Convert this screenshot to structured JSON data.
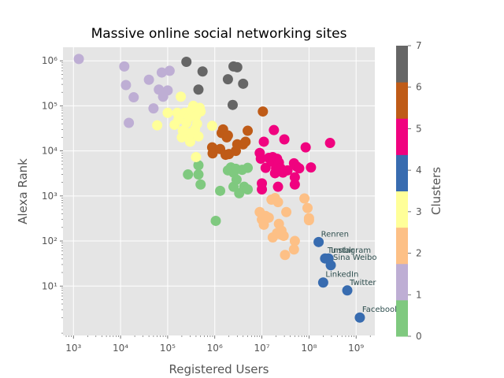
{
  "chart_data": {
    "type": "scatter",
    "title": "Massive online social networking sites",
    "xlabel": "Registered Users",
    "ylabel": "Alexa Rank",
    "xscale": "log",
    "yscale": "log",
    "xlim": [
      600,
      2500000000
    ],
    "ylim": [
      0.8,
      2000000
    ],
    "grid": true,
    "background": "#e5e5e5",
    "xticks": [
      {
        "value": 1000,
        "label": "10³"
      },
      {
        "value": 10000,
        "label": "10⁴"
      },
      {
        "value": 100000,
        "label": "10⁵"
      },
      {
        "value": 1000000,
        "label": "10⁶"
      },
      {
        "value": 10000000,
        "label": "10⁷"
      },
      {
        "value": 100000000,
        "label": "10⁸"
      },
      {
        "value": 1000000000,
        "label": "10⁹"
      }
    ],
    "yticks": [
      {
        "value": 10,
        "label": "10¹"
      },
      {
        "value": 100,
        "label": "10²"
      },
      {
        "value": 1000,
        "label": "10³"
      },
      {
        "value": 10000,
        "label": "10⁴"
      },
      {
        "value": 100000,
        "label": "10⁵"
      },
      {
        "value": 1000000,
        "label": "10⁶"
      }
    ],
    "colorbar": {
      "label": "Clusters",
      "min": 0,
      "max": 7,
      "ticks": [
        "0",
        "1",
        "2",
        "3",
        "4",
        "5",
        "6",
        "7"
      ],
      "colors": [
        "#7fc97f",
        "#beaed4",
        "#fdc086",
        "#ffff99",
        "#386cb0",
        "#f0027f",
        "#bf5b17",
        "#666666"
      ]
    },
    "series": [
      {
        "cluster": 0,
        "color": "#7fc97f",
        "points": [
          [
            270000,
            3000
          ],
          [
            450000,
            4800
          ],
          [
            450000,
            3000
          ],
          [
            500000,
            1800
          ],
          [
            1050000,
            280
          ],
          [
            1300000,
            1300
          ],
          [
            1900000,
            3700
          ],
          [
            2200000,
            4300
          ],
          [
            2500000,
            3300
          ],
          [
            2500000,
            1600
          ],
          [
            2800000,
            4000
          ],
          [
            2900000,
            2300
          ],
          [
            3300000,
            1150
          ],
          [
            3800000,
            3800
          ],
          [
            4200000,
            1600
          ],
          [
            5000000,
            4200
          ],
          [
            5000000,
            1400
          ]
        ]
      },
      {
        "cluster": 1,
        "color": "#beaed4",
        "points": [
          [
            1300,
            1100000
          ],
          [
            12000,
            750000
          ],
          [
            13000,
            290000
          ],
          [
            15000,
            42000
          ],
          [
            19000,
            155000
          ],
          [
            40000,
            380000
          ],
          [
            50000,
            88000
          ],
          [
            65000,
            230000
          ],
          [
            75000,
            550000
          ],
          [
            80000,
            160000
          ],
          [
            100000,
            220000
          ],
          [
            110000,
            600000
          ]
        ]
      },
      {
        "cluster": 2,
        "color": "#fdc086",
        "points": [
          [
            9000000,
            440
          ],
          [
            10000000,
            300
          ],
          [
            11000000,
            230
          ],
          [
            12000000,
            360
          ],
          [
            14000000,
            330
          ],
          [
            16000000,
            830
          ],
          [
            17000000,
            120
          ],
          [
            19000000,
            900
          ],
          [
            21000000,
            150
          ],
          [
            22000000,
            730
          ],
          [
            23000000,
            240
          ],
          [
            25000000,
            140
          ],
          [
            26000000,
            170
          ],
          [
            29000000,
            130
          ],
          [
            31000000,
            49
          ],
          [
            33000000,
            440
          ],
          [
            48000000,
            65
          ],
          [
            50000000,
            100
          ],
          [
            80000000,
            880
          ],
          [
            93000000,
            540
          ],
          [
            100000000,
            290
          ],
          [
            100000000,
            320
          ]
        ]
      },
      {
        "cluster": 3,
        "color": "#ffff99",
        "points": [
          [
            60000,
            37000
          ],
          [
            100000,
            70000
          ],
          [
            140000,
            38000
          ],
          [
            160000,
            70000
          ],
          [
            170000,
            50000
          ],
          [
            190000,
            160000
          ],
          [
            200000,
            20000
          ],
          [
            210000,
            28000
          ],
          [
            230000,
            70000
          ],
          [
            250000,
            42000
          ],
          [
            270000,
            25000
          ],
          [
            280000,
            55000
          ],
          [
            300000,
            16000
          ],
          [
            320000,
            80000
          ],
          [
            320000,
            25000
          ],
          [
            350000,
            100000
          ],
          [
            380000,
            30000
          ],
          [
            400000,
            7300
          ],
          [
            400000,
            60000
          ],
          [
            420000,
            40000
          ],
          [
            450000,
            21000
          ],
          [
            480000,
            90000
          ],
          [
            500000,
            75000
          ],
          [
            880000,
            36000
          ]
        ]
      },
      {
        "cluster": 4,
        "color": "#386cb0",
        "points": [
          [
            160000000,
            95
          ],
          [
            220000000,
            41
          ],
          [
            260000000,
            41
          ],
          [
            290000000,
            29
          ],
          [
            200000000,
            12
          ],
          [
            650000000,
            8
          ],
          [
            1200000000,
            2
          ]
        ]
      },
      {
        "cluster": 5,
        "color": "#f0027f",
        "points": [
          [
            9000000,
            9000
          ],
          [
            9500000,
            6700
          ],
          [
            10000000,
            1400
          ],
          [
            10000000,
            1900
          ],
          [
            11000000,
            16000
          ],
          [
            12000000,
            4200
          ],
          [
            14000000,
            7000
          ],
          [
            16000000,
            5800
          ],
          [
            17000000,
            7300
          ],
          [
            18000000,
            29000
          ],
          [
            19000000,
            3200
          ],
          [
            20000000,
            4100
          ],
          [
            21000000,
            6700
          ],
          [
            22000000,
            1600
          ],
          [
            23000000,
            5500
          ],
          [
            25000000,
            4100
          ],
          [
            28000000,
            3300
          ],
          [
            30000000,
            18000
          ],
          [
            35000000,
            3700
          ],
          [
            48000000,
            5300
          ],
          [
            50000000,
            2600
          ],
          [
            50000000,
            1800
          ],
          [
            55000000,
            4500
          ],
          [
            62000000,
            4100
          ],
          [
            85000000,
            12000
          ],
          [
            110000000,
            4300
          ],
          [
            280000000,
            15000
          ]
        ]
      },
      {
        "cluster": 6,
        "color": "#bf5b17",
        "points": [
          [
            880000,
            12000
          ],
          [
            900000,
            8800
          ],
          [
            1300000,
            11000
          ],
          [
            1400000,
            25000
          ],
          [
            1500000,
            30000
          ],
          [
            1700000,
            8200
          ],
          [
            1800000,
            20000
          ],
          [
            1900000,
            22000
          ],
          [
            2000000,
            8500
          ],
          [
            2800000,
            10000
          ],
          [
            3000000,
            14000
          ],
          [
            4000000,
            14000
          ],
          [
            4500000,
            16000
          ],
          [
            5000000,
            28000
          ],
          [
            10500000,
            75000
          ]
        ]
      },
      {
        "cluster": 7,
        "color": "#666666",
        "points": [
          [
            250000,
            950000
          ],
          [
            450000,
            230000
          ],
          [
            550000,
            580000
          ],
          [
            1900000,
            390000
          ],
          [
            2400000,
            105000
          ],
          [
            2500000,
            750000
          ],
          [
            3000000,
            720000
          ],
          [
            4000000,
            310000
          ]
        ]
      }
    ],
    "annotations": [
      {
        "text": "Renren",
        "x": 160000000,
        "y": 95
      },
      {
        "text": "Tumblr",
        "x": 220000000,
        "y": 41
      },
      {
        "text": "Instagram",
        "x": 260000000,
        "y": 41
      },
      {
        "text": "Sina Weibo",
        "x": 290000000,
        "y": 29
      },
      {
        "text": "LinkedIn",
        "x": 200000000,
        "y": 12
      },
      {
        "text": "Twitter",
        "x": 650000000,
        "y": 8
      },
      {
        "text": "Facebook",
        "x": 1200000000,
        "y": 2
      }
    ]
  }
}
